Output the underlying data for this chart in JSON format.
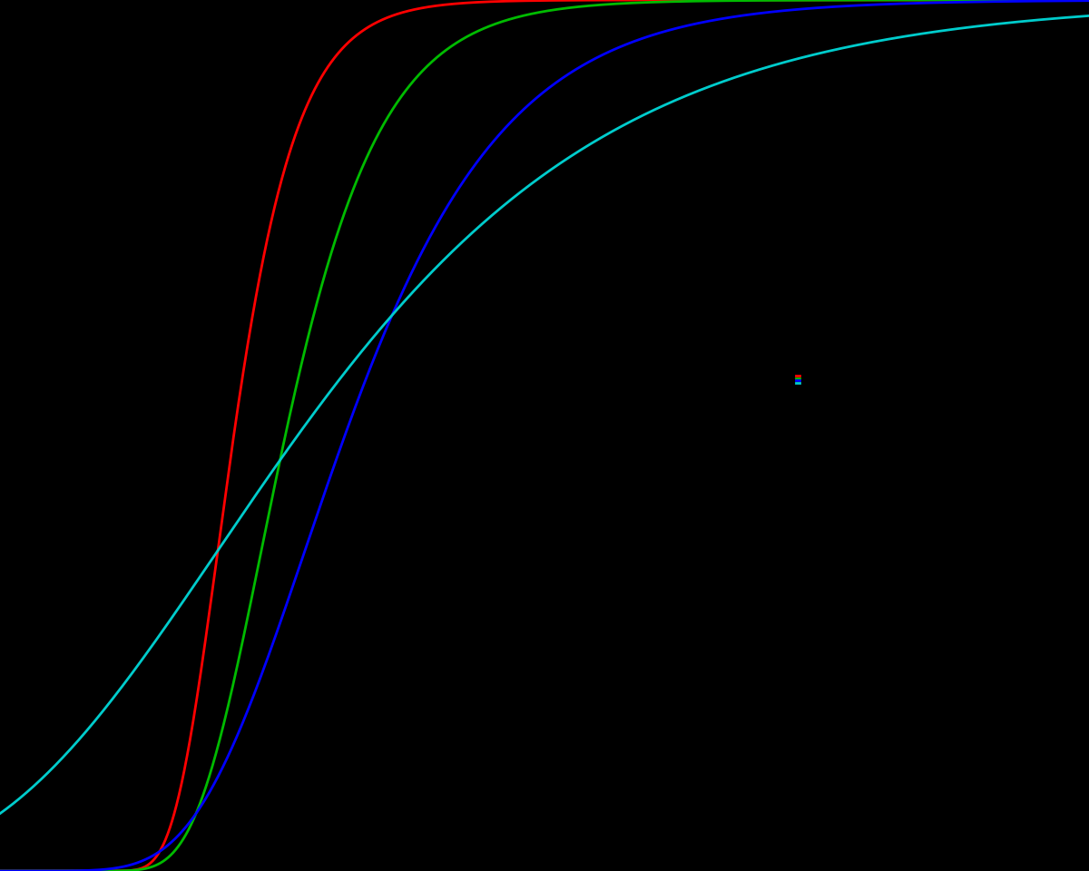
{
  "background_color": "#000000",
  "curves": [
    {
      "mu": 0,
      "beta": 1.0,
      "color": "#ff0000"
    },
    {
      "mu": 1,
      "beta": 1.5,
      "color": "#00bb00"
    },
    {
      "mu": 2,
      "beta": 2.5,
      "color": "#0000ff"
    },
    {
      "mu": 0,
      "beta": 5.0,
      "color": "#00cccc"
    }
  ],
  "xlim": [
    -5,
    20
  ],
  "ylim": [
    0,
    1.0
  ],
  "line_width": 2.0
}
